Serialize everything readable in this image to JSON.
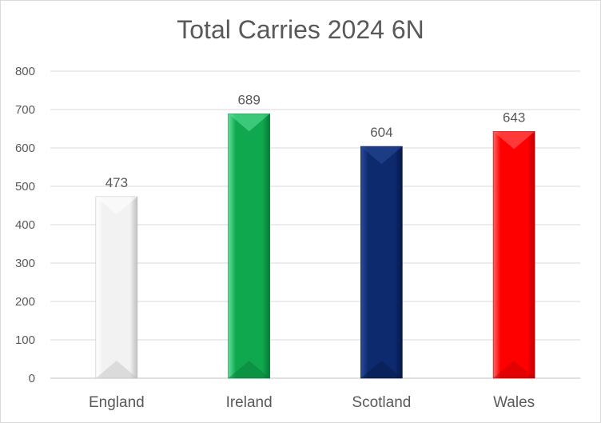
{
  "chart_data": {
    "type": "bar",
    "title": "Total Carries 2024 6N",
    "xlabel": "",
    "ylabel": "",
    "categories": [
      "England",
      "Ireland",
      "Scotland",
      "Wales"
    ],
    "values": [
      473,
      689,
      604,
      643
    ],
    "data_labels": [
      "473",
      "689",
      "604",
      "643"
    ],
    "ylim": [
      0,
      800
    ],
    "yticks": [
      0,
      100,
      200,
      300,
      400,
      500,
      600,
      700,
      800
    ],
    "grid": true,
    "legend": "none",
    "colors": [
      "#f2f2f2",
      "#10a84f",
      "#0d2a6e",
      "#ff0000"
    ],
    "dark_colors": [
      "#bfbfbf",
      "#067a36",
      "#061845",
      "#c00000"
    ],
    "light_colors": [
      "#ffffff",
      "#5fe29a",
      "#2b4a9a",
      "#ff6666"
    ]
  }
}
